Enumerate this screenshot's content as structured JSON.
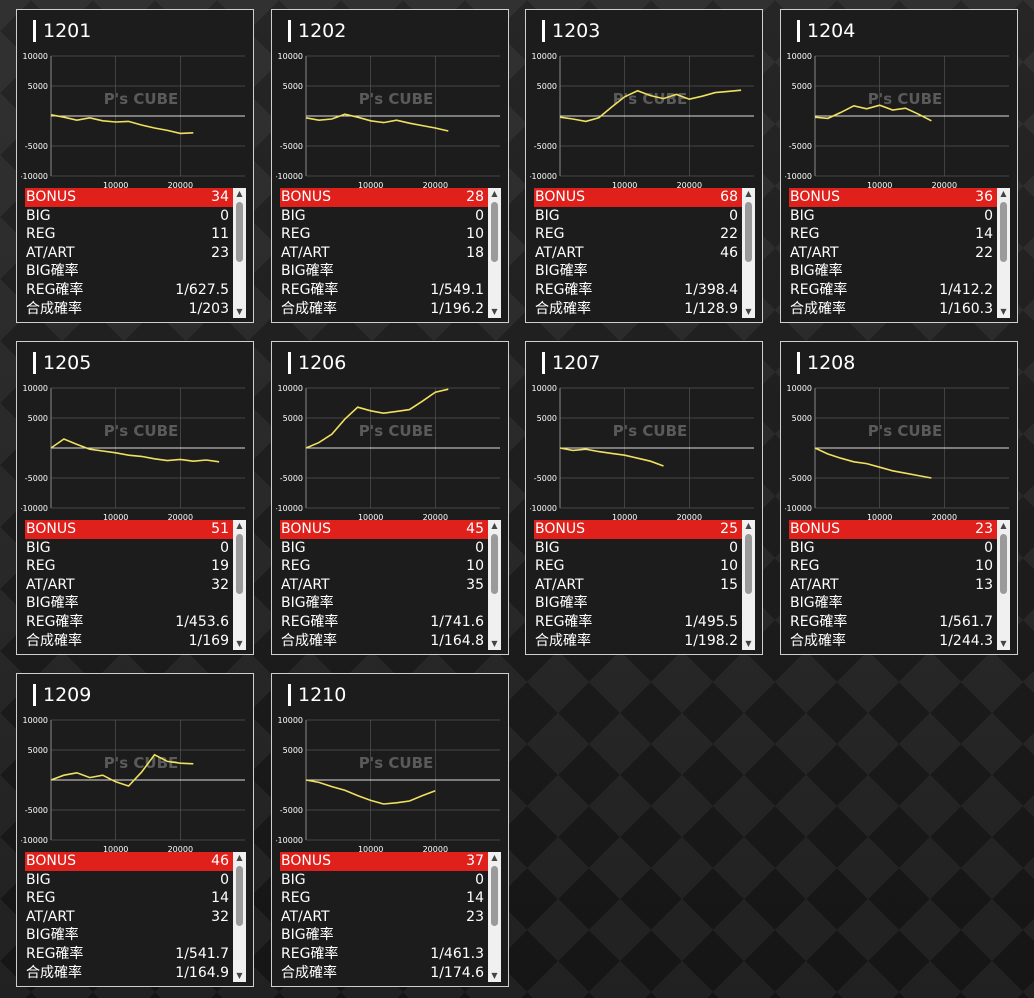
{
  "chart_axis": {
    "y_ticks": [
      "10000",
      "5000",
      "-5000",
      "-10000"
    ],
    "x_ticks": [
      "10000",
      "20000"
    ]
  },
  "watermark": "P's CUBE",
  "line_color": "#f0e060",
  "bonus_color": "#e0201b",
  "labels": {
    "bonus": "BONUS",
    "big": "BIG",
    "reg": "REG",
    "at": "AT/ART",
    "big_rate": "BIG確率",
    "reg_rate": "REG確率",
    "total_rate": "合成確率"
  },
  "machines": [
    {
      "number": "1201",
      "bonus": "34",
      "big": "0",
      "reg": "11",
      "at": "23",
      "big_rate": "",
      "reg_rate": "1/627.5",
      "total_rate": "1/203",
      "chart_data": {
        "type": "line",
        "x": [
          0,
          2000,
          4000,
          6000,
          8000,
          10000,
          12000,
          14000,
          16000,
          18000,
          20000,
          22000
        ],
        "y": [
          200,
          -200,
          -700,
          -300,
          -800,
          -1000,
          -900,
          -1500,
          -2000,
          -2400,
          -2900,
          -2800
        ],
        "ylim": [
          -10000,
          10000
        ],
        "xlim": [
          0,
          30000
        ]
      }
    },
    {
      "number": "1202",
      "bonus": "28",
      "big": "0",
      "reg": "10",
      "at": "18",
      "big_rate": "",
      "reg_rate": "1/549.1",
      "total_rate": "1/196.2",
      "chart_data": {
        "type": "line",
        "x": [
          0,
          2000,
          4000,
          6000,
          8000,
          10000,
          12000,
          14000,
          16000,
          18000,
          20000,
          22000
        ],
        "y": [
          -300,
          -700,
          -500,
          300,
          -200,
          -800,
          -1100,
          -700,
          -1200,
          -1600,
          -2000,
          -2500
        ],
        "ylim": [
          -10000,
          10000
        ],
        "xlim": [
          0,
          30000
        ]
      }
    },
    {
      "number": "1203",
      "bonus": "68",
      "big": "0",
      "reg": "22",
      "at": "46",
      "big_rate": "",
      "reg_rate": "1/398.4",
      "total_rate": "1/128.9",
      "chart_data": {
        "type": "line",
        "x": [
          0,
          2000,
          4000,
          6000,
          8000,
          10000,
          12000,
          14000,
          16000,
          18000,
          20000,
          22000,
          24000,
          26000,
          28000
        ],
        "y": [
          -200,
          -500,
          -900,
          -300,
          1500,
          3200,
          4200,
          3400,
          2900,
          3600,
          2800,
          3300,
          3900,
          4100,
          4300
        ],
        "ylim": [
          -10000,
          10000
        ],
        "xlim": [
          0,
          30000
        ]
      }
    },
    {
      "number": "1204",
      "bonus": "36",
      "big": "0",
      "reg": "14",
      "at": "22",
      "big_rate": "",
      "reg_rate": "1/412.2",
      "total_rate": "1/160.3",
      "chart_data": {
        "type": "line",
        "x": [
          0,
          2000,
          4000,
          6000,
          8000,
          10000,
          12000,
          14000,
          16000,
          18000
        ],
        "y": [
          -200,
          -400,
          600,
          1700,
          1200,
          1800,
          1000,
          1300,
          300,
          -800
        ],
        "ylim": [
          -10000,
          10000
        ],
        "xlim": [
          0,
          30000
        ]
      }
    },
    {
      "number": "1205",
      "bonus": "51",
      "big": "0",
      "reg": "19",
      "at": "32",
      "big_rate": "",
      "reg_rate": "1/453.6",
      "total_rate": "1/169",
      "chart_data": {
        "type": "line",
        "x": [
          0,
          2000,
          4000,
          6000,
          8000,
          10000,
          12000,
          14000,
          16000,
          18000,
          20000,
          22000,
          24000,
          26000
        ],
        "y": [
          0,
          1500,
          600,
          -200,
          -500,
          -800,
          -1200,
          -1400,
          -1800,
          -2100,
          -1900,
          -2200,
          -2000,
          -2300
        ],
        "ylim": [
          -10000,
          10000
        ],
        "xlim": [
          0,
          30000
        ]
      }
    },
    {
      "number": "1206",
      "bonus": "45",
      "big": "0",
      "reg": "10",
      "at": "35",
      "big_rate": "",
      "reg_rate": "1/741.6",
      "total_rate": "1/164.8",
      "chart_data": {
        "type": "line",
        "x": [
          0,
          2000,
          4000,
          6000,
          8000,
          10000,
          12000,
          14000,
          16000,
          18000,
          20000,
          22000
        ],
        "y": [
          0,
          900,
          2300,
          4800,
          6800,
          6200,
          5800,
          6100,
          6400,
          7800,
          9300,
          9800
        ],
        "ylim": [
          -10000,
          10000
        ],
        "xlim": [
          0,
          30000
        ]
      }
    },
    {
      "number": "1207",
      "bonus": "25",
      "big": "0",
      "reg": "10",
      "at": "15",
      "big_rate": "",
      "reg_rate": "1/495.5",
      "total_rate": "1/198.2",
      "chart_data": {
        "type": "line",
        "x": [
          0,
          2000,
          4000,
          6000,
          8000,
          10000,
          12000,
          14000,
          16000
        ],
        "y": [
          0,
          -400,
          -200,
          -600,
          -900,
          -1200,
          -1700,
          -2200,
          -3000
        ],
        "ylim": [
          -10000,
          10000
        ],
        "xlim": [
          0,
          30000
        ]
      }
    },
    {
      "number": "1208",
      "bonus": "23",
      "big": "0",
      "reg": "10",
      "at": "13",
      "big_rate": "",
      "reg_rate": "1/561.7",
      "total_rate": "1/244.3",
      "chart_data": {
        "type": "line",
        "x": [
          0,
          2000,
          4000,
          6000,
          8000,
          10000,
          12000,
          14000,
          16000,
          18000
        ],
        "y": [
          0,
          -1000,
          -1700,
          -2300,
          -2600,
          -3200,
          -3800,
          -4200,
          -4600,
          -5000
        ],
        "ylim": [
          -10000,
          10000
        ],
        "xlim": [
          0,
          30000
        ]
      }
    },
    {
      "number": "1209",
      "bonus": "46",
      "big": "0",
      "reg": "14",
      "at": "32",
      "big_rate": "",
      "reg_rate": "1/541.7",
      "total_rate": "1/164.9",
      "chart_data": {
        "type": "line",
        "x": [
          0,
          2000,
          4000,
          6000,
          8000,
          10000,
          12000,
          14000,
          16000,
          18000,
          20000,
          22000
        ],
        "y": [
          0,
          800,
          1200,
          400,
          800,
          -300,
          -1000,
          1300,
          4200,
          3100,
          2800,
          2700
        ],
        "ylim": [
          -10000,
          10000
        ],
        "xlim": [
          0,
          30000
        ]
      }
    },
    {
      "number": "1210",
      "bonus": "37",
      "big": "0",
      "reg": "14",
      "at": "23",
      "big_rate": "",
      "reg_rate": "1/461.3",
      "total_rate": "1/174.6",
      "chart_data": {
        "type": "line",
        "x": [
          0,
          2000,
          4000,
          6000,
          8000,
          10000,
          12000,
          14000,
          16000,
          18000,
          20000
        ],
        "y": [
          0,
          -400,
          -1100,
          -1700,
          -2600,
          -3400,
          -4000,
          -3800,
          -3500,
          -2600,
          -1800
        ],
        "ylim": [
          -10000,
          10000
        ],
        "xlim": [
          0,
          30000
        ]
      }
    }
  ]
}
